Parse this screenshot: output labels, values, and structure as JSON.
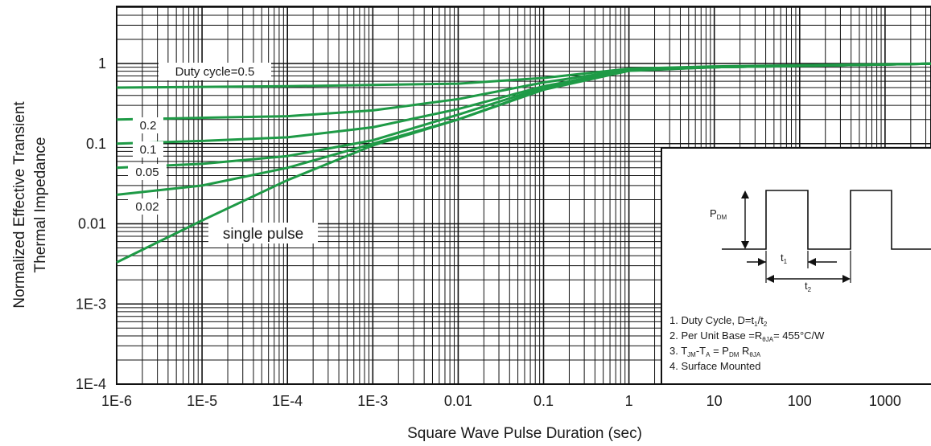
{
  "chart_data": {
    "type": "line",
    "xlabel": "Square Wave Pulse Duration (sec)",
    "ylabel": [
      "Normalized Effective Transient",
      "Thermal Impedance"
    ],
    "x_scale": "log",
    "y_scale": "log",
    "xlim": [
      1e-06,
      5000
    ],
    "ylim": [
      0.0001,
      5
    ],
    "grid": true,
    "x_ticks": [
      {
        "value": 1e-06,
        "label": "1E-6"
      },
      {
        "value": 1e-05,
        "label": "1E-5"
      },
      {
        "value": 0.0001,
        "label": "1E-4"
      },
      {
        "value": 0.001,
        "label": "1E-3"
      },
      {
        "value": 0.01,
        "label": "0.01"
      },
      {
        "value": 0.1,
        "label": "0.1"
      },
      {
        "value": 1,
        "label": "1"
      },
      {
        "value": 10,
        "label": "10"
      },
      {
        "value": 100,
        "label": "100"
      },
      {
        "value": 1000,
        "label": "1000"
      }
    ],
    "y_ticks": [
      {
        "value": 1,
        "label": "1"
      },
      {
        "value": 0.1,
        "label": "0.1"
      },
      {
        "value": 0.01,
        "label": "0.01"
      },
      {
        "value": 0.001,
        "label": "1E-3"
      },
      {
        "value": 0.0001,
        "label": "1E-4"
      }
    ],
    "line_color": "#1e9a46",
    "series": [
      {
        "name": "Duty cycle=0.5",
        "x": [
          1e-06,
          0.0001,
          0.01,
          0.1,
          1,
          10,
          100,
          1000,
          5000
        ],
        "y": [
          0.5,
          0.52,
          0.56,
          0.66,
          0.86,
          0.92,
          0.95,
          0.98,
          1.0
        ]
      },
      {
        "name": "0.2",
        "x": [
          1e-06,
          1e-05,
          0.0001,
          0.001,
          0.01,
          0.1,
          1,
          10,
          1000,
          5000
        ],
        "y": [
          0.2,
          0.21,
          0.22,
          0.26,
          0.36,
          0.58,
          0.84,
          0.9,
          0.97,
          1.0
        ]
      },
      {
        "name": "0.1",
        "x": [
          1e-06,
          1e-05,
          0.0001,
          0.001,
          0.01,
          0.1,
          1,
          10,
          1000,
          5000
        ],
        "y": [
          0.1,
          0.108,
          0.12,
          0.16,
          0.27,
          0.52,
          0.83,
          0.9,
          0.97,
          1.0
        ]
      },
      {
        "name": "0.05",
        "x": [
          1e-06,
          1e-05,
          0.0001,
          0.001,
          0.01,
          0.1,
          1,
          10,
          1000,
          5000
        ],
        "y": [
          0.05,
          0.056,
          0.07,
          0.11,
          0.23,
          0.5,
          0.82,
          0.9,
          0.97,
          1.0
        ]
      },
      {
        "name": "0.02",
        "x": [
          1e-06,
          1e-05,
          0.0001,
          0.001,
          0.01,
          0.1,
          1,
          10,
          1000,
          5000
        ],
        "y": [
          0.023,
          0.03,
          0.05,
          0.1,
          0.2,
          0.48,
          0.82,
          0.9,
          0.97,
          1.0
        ]
      },
      {
        "name": "single pulse",
        "x": [
          1e-06,
          1e-05,
          0.0001,
          0.001,
          0.01,
          0.1,
          1,
          10,
          1000,
          5000
        ],
        "y": [
          0.0033,
          0.011,
          0.035,
          0.095,
          0.2,
          0.47,
          0.81,
          0.9,
          0.97,
          1.0
        ]
      }
    ],
    "curve_labels": [
      "Duty cycle=0.5",
      "0.2",
      "0.1",
      "0.05",
      "0.02",
      "single pulse"
    ]
  },
  "inset": {
    "pdm": "P",
    "pdm_sub": "DM",
    "t1": "t",
    "t1_sub": "1",
    "t2": "t",
    "t2_sub": "2",
    "notes": [
      {
        "num": "1. ",
        "parts": [
          [
            "Duty Cycle, D=t",
            ""
          ],
          [
            "1",
            "sub"
          ],
          [
            "/t",
            ""
          ],
          [
            "2",
            "sub"
          ]
        ]
      },
      {
        "num": "2. ",
        "parts": [
          [
            "Per Unit Base =R",
            ""
          ],
          [
            "θJA",
            "sub"
          ],
          [
            "= 455°C/W",
            ""
          ]
        ]
      },
      {
        "num": "3. ",
        "parts": [
          [
            "T",
            ""
          ],
          [
            "JM",
            "sub"
          ],
          [
            "-T",
            ""
          ],
          [
            "A",
            "sub"
          ],
          [
            " = P",
            ""
          ],
          [
            "DM",
            "sub"
          ],
          [
            " R",
            ""
          ],
          [
            "θJA",
            "sub"
          ]
        ]
      },
      {
        "num": "4. ",
        "parts": [
          [
            "Surface Mounted",
            ""
          ]
        ]
      }
    ]
  }
}
